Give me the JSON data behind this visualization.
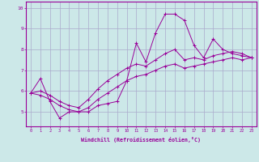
{
  "xlabel": "Windchill (Refroidissement éolien,°C)",
  "background_color": "#cce8e8",
  "grid_color": "#aaaacc",
  "line_color": "#990099",
  "x_values": [
    0,
    1,
    2,
    3,
    4,
    5,
    6,
    7,
    8,
    9,
    10,
    11,
    12,
    13,
    14,
    15,
    16,
    17,
    18,
    19,
    20,
    21,
    22,
    23
  ],
  "line1": [
    5.9,
    6.6,
    5.5,
    4.7,
    5.0,
    5.0,
    5.0,
    5.3,
    5.4,
    5.5,
    6.5,
    8.3,
    7.4,
    8.8,
    9.7,
    9.7,
    9.4,
    8.2,
    7.6,
    8.5,
    8.0,
    7.8,
    7.7,
    7.6
  ],
  "line2": [
    5.9,
    6.0,
    5.8,
    5.5,
    5.3,
    5.2,
    5.6,
    6.1,
    6.5,
    6.8,
    7.1,
    7.3,
    7.2,
    7.5,
    7.8,
    8.0,
    7.5,
    7.6,
    7.5,
    7.7,
    7.8,
    7.9,
    7.8,
    7.6
  ],
  "line3": [
    5.9,
    5.8,
    5.6,
    5.3,
    5.1,
    5.0,
    5.2,
    5.6,
    5.9,
    6.2,
    6.5,
    6.7,
    6.8,
    7.0,
    7.2,
    7.3,
    7.1,
    7.2,
    7.3,
    7.4,
    7.5,
    7.6,
    7.5,
    7.6
  ],
  "ylim": [
    4.3,
    10.3
  ],
  "xlim": [
    -0.5,
    23.5
  ],
  "yticks": [
    5,
    6,
    7,
    8,
    9,
    10
  ],
  "xticks": [
    0,
    1,
    2,
    3,
    4,
    5,
    6,
    7,
    8,
    9,
    10,
    11,
    12,
    13,
    14,
    15,
    16,
    17,
    18,
    19,
    20,
    21,
    22,
    23
  ]
}
